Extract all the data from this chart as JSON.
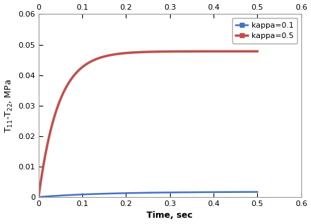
{
  "xlabel": "Time, sec",
  "ylabel": "T$_{11}$-T$_{22}$, MPa",
  "xlim": [
    0,
    0.6
  ],
  "ylim": [
    0,
    0.06
  ],
  "xticks": [
    0,
    0.1,
    0.2,
    0.3,
    0.4,
    0.5,
    0.6
  ],
  "yticks": [
    0,
    0.01,
    0.02,
    0.03,
    0.04,
    0.05,
    0.06
  ],
  "color1": "#4472C4",
  "color2": "#C0504D",
  "legend_labels": [
    "kappa=0.1",
    "kappa=0.5"
  ],
  "linewidth1": 1.8,
  "linewidth2": 2.5,
  "steady1": 0.00175,
  "steady2": 0.0478,
  "tau1": 0.15,
  "tau2": 0.045,
  "t_max": 0.5,
  "n_points": 1000,
  "legend_marker": "s",
  "legend_markersize": 5
}
